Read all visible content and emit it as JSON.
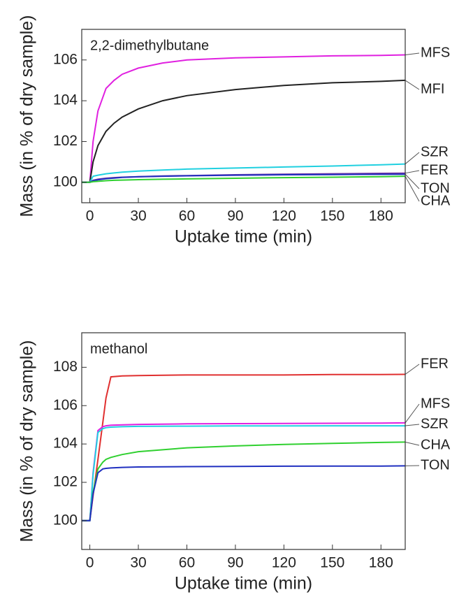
{
  "chart_data": [
    {
      "type": "line",
      "title": "2,2-dimethylbutane",
      "x_label": "Uptake time (min)",
      "y_label": "Mass (in % of dry sample)",
      "x": [
        -5,
        0,
        2,
        5,
        10,
        15,
        20,
        30,
        45,
        60,
        90,
        120,
        150,
        180,
        195
      ],
      "series": [
        {
          "name": "MFS",
          "color": "#e020e0",
          "values": [
            100,
            100,
            102.0,
            103.5,
            104.6,
            105.0,
            105.3,
            105.6,
            105.85,
            106.0,
            106.1,
            106.15,
            106.2,
            106.22,
            106.25
          ]
        },
        {
          "name": "MFI",
          "color": "#222222",
          "values": [
            100,
            100,
            101.0,
            101.8,
            102.5,
            102.9,
            103.2,
            103.6,
            104.0,
            104.25,
            104.55,
            104.75,
            104.88,
            104.95,
            105.0
          ]
        },
        {
          "name": "SZR",
          "color": "#20d0e0",
          "values": [
            100,
            100,
            100.3,
            100.35,
            100.42,
            100.46,
            100.5,
            100.55,
            100.6,
            100.65,
            100.7,
            100.75,
            100.8,
            100.86,
            100.9
          ]
        },
        {
          "name": "FER",
          "color": "#7030a0",
          "values": [
            100,
            100,
            100.1,
            100.15,
            100.2,
            100.23,
            100.25,
            100.28,
            100.31,
            100.33,
            100.37,
            100.4,
            100.42,
            100.44,
            100.45
          ]
        },
        {
          "name": "TON",
          "color": "#2030c0",
          "values": [
            100,
            100,
            100.08,
            100.12,
            100.18,
            100.21,
            100.24,
            100.27,
            100.3,
            100.32,
            100.35,
            100.37,
            100.38,
            100.39,
            100.4
          ]
        },
        {
          "name": "CHA",
          "color": "#30d030",
          "values": [
            100,
            100,
            100.03,
            100.05,
            100.08,
            100.1,
            100.11,
            100.13,
            100.15,
            100.17,
            100.2,
            100.23,
            100.25,
            100.28,
            100.3
          ]
        }
      ],
      "xlim": [
        -5,
        195
      ],
      "ylim": [
        99,
        107.5
      ],
      "xticks": [
        0,
        30,
        60,
        90,
        120,
        150,
        180
      ],
      "yticks": [
        100,
        102,
        104,
        106
      ]
    },
    {
      "type": "line",
      "title": "methanol",
      "x_label": "Uptake time (min)",
      "y_label": "Mass (in % of dry sample)",
      "x": [
        -5,
        0,
        2,
        5,
        8,
        10,
        13,
        20,
        30,
        60,
        90,
        120,
        150,
        180,
        195
      ],
      "series": [
        {
          "name": "FER",
          "color": "#e03030",
          "values": [
            100,
            100,
            101.3,
            103.2,
            105.1,
            106.4,
            107.5,
            107.55,
            107.57,
            107.6,
            107.6,
            107.6,
            107.62,
            107.62,
            107.63
          ]
        },
        {
          "name": "MFS",
          "color": "#e020e0",
          "values": [
            100,
            100,
            102.5,
            104.7,
            104.9,
            104.95,
            104.98,
            105.0,
            105.02,
            105.05,
            105.06,
            105.07,
            105.08,
            105.09,
            105.1
          ]
        },
        {
          "name": "SZR",
          "color": "#20d0e0",
          "values": [
            100,
            100,
            102.4,
            104.6,
            104.8,
            104.85,
            104.88,
            104.9,
            104.92,
            104.93,
            104.94,
            104.94,
            104.95,
            104.95,
            104.95
          ]
        },
        {
          "name": "CHA",
          "color": "#30d030",
          "values": [
            100,
            100,
            101.5,
            102.7,
            103.05,
            103.2,
            103.3,
            103.45,
            103.6,
            103.8,
            103.9,
            103.98,
            104.03,
            104.08,
            104.1
          ]
        },
        {
          "name": "TON",
          "color": "#2030c0",
          "values": [
            100,
            100,
            101.4,
            102.5,
            102.7,
            102.73,
            102.75,
            102.78,
            102.8,
            102.82,
            102.83,
            102.84,
            102.85,
            102.85,
            102.86
          ]
        }
      ],
      "xlim": [
        -5,
        195
      ],
      "ylim": [
        98.5,
        109.8
      ],
      "xticks": [
        0,
        30,
        60,
        90,
        120,
        150,
        180
      ],
      "yticks": [
        100,
        102,
        104,
        106,
        108
      ]
    }
  ]
}
